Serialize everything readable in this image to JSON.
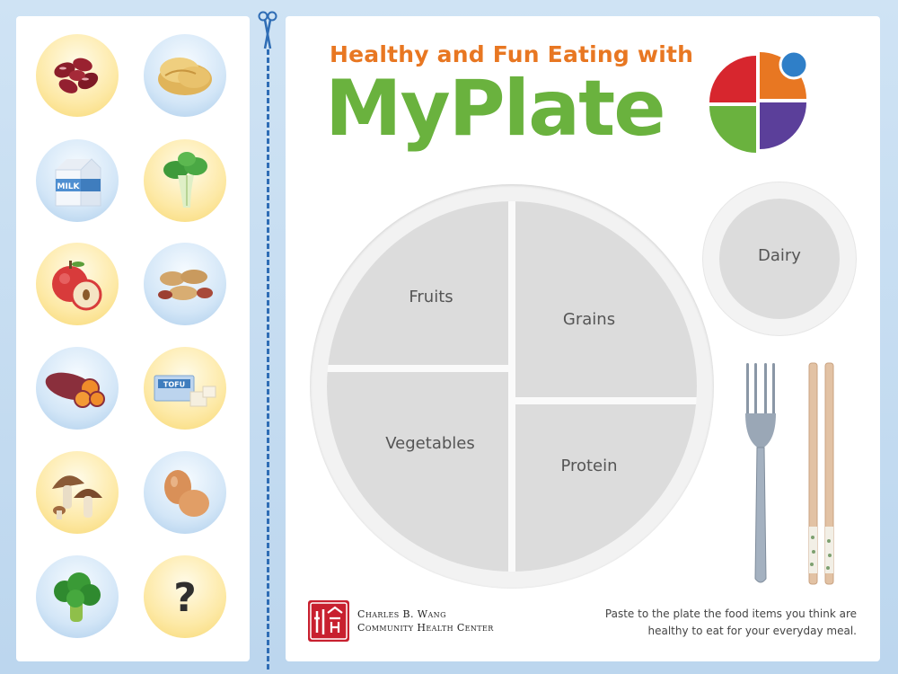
{
  "header": {
    "subtitle": "Healthy and Fun Eating with",
    "title": "MyPlate"
  },
  "plate": {
    "fruits_label": "Fruits",
    "grains_label": "Grains",
    "vegetables_label": "Vegetables",
    "protein_label": "Protein",
    "dairy_label": "Dairy"
  },
  "food_items": [
    {
      "icon": "kidney-beans-icon",
      "tint": "yellow"
    },
    {
      "icon": "bread-icon",
      "tint": "blue"
    },
    {
      "icon": "milk-carton-icon",
      "tint": "blue",
      "text": "MILK"
    },
    {
      "icon": "bok-choy-icon",
      "tint": "yellow"
    },
    {
      "icon": "apple-icon",
      "tint": "yellow"
    },
    {
      "icon": "peanuts-icon",
      "tint": "blue"
    },
    {
      "icon": "sweet-potato-icon",
      "tint": "blue"
    },
    {
      "icon": "tofu-icon",
      "tint": "yellow",
      "text": "TOFU"
    },
    {
      "icon": "mushrooms-icon",
      "tint": "yellow"
    },
    {
      "icon": "eggs-icon",
      "tint": "blue"
    },
    {
      "icon": "broccoli-icon",
      "tint": "blue"
    },
    {
      "icon": "question-mark-icon",
      "tint": "yellow",
      "text": "?"
    }
  ],
  "footer": {
    "org_line1": "Charles B. Wang",
    "org_line2": "Community Health Center",
    "instruction": "Paste to the plate the food items you think are healthy to eat for your everyday meal."
  },
  "colors": {
    "title_orange": "#e87722",
    "title_green": "#6ab23e",
    "myplate_red": "#d7262e",
    "myplate_orange": "#e87722",
    "myplate_green": "#6ab23e",
    "myplate_purple": "#5b3f9a",
    "myplate_blue": "#2f7fc8",
    "cut_line_blue": "#2f6db5"
  }
}
